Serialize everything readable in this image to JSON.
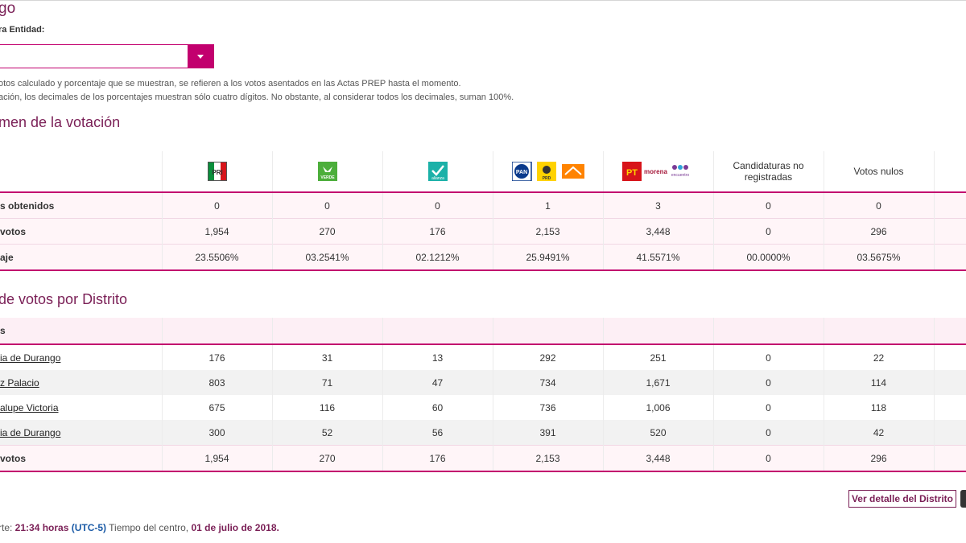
{
  "page_title": "go",
  "select_label": "ra Entidad:",
  "notes": [
    "otos calculado y porcentaje que se muestran, se refieren a los votos asentados en las Actas PREP hasta el momento.",
    "ación, los decimales de los porcentajes muestran sólo cuatro dígitos. No obstante, al considerar todos los decimales, suman 100%."
  ],
  "summary": {
    "title": "men de la votación",
    "columns": [
      {
        "type": "logo",
        "parties": [
          "PRI"
        ]
      },
      {
        "type": "logo",
        "parties": [
          "VERDE"
        ]
      },
      {
        "type": "logo",
        "parties": [
          "alianza"
        ]
      },
      {
        "type": "logo",
        "parties": [
          "PAN",
          "PRD",
          "MC"
        ]
      },
      {
        "type": "logo",
        "parties": [
          "PT",
          "morena",
          "encuentro"
        ]
      },
      {
        "type": "text",
        "label": "Candidaturas no registradas"
      },
      {
        "type": "text",
        "label": "Votos nulos"
      }
    ],
    "rows": [
      {
        "label": "s obtenidos",
        "values": [
          "0",
          "0",
          "0",
          "1",
          "3",
          "0",
          "0"
        ]
      },
      {
        "label": "votos",
        "values": [
          "1,954",
          "270",
          "176",
          "2,153",
          "3,448",
          "0",
          "296"
        ]
      },
      {
        "label": "aje",
        "values": [
          "23.5506%",
          "03.2541%",
          "02.1212%",
          "25.9491%",
          "41.5571%",
          "00.0000%",
          "03.5675%"
        ]
      }
    ]
  },
  "district": {
    "title": "de votos por Distrito",
    "header_label": "s",
    "rows": [
      {
        "label": "ia de Durango",
        "values": [
          "176",
          "31",
          "13",
          "292",
          "251",
          "0",
          "22"
        ]
      },
      {
        "label": "z Palacio",
        "values": [
          "803",
          "71",
          "47",
          "734",
          "1,671",
          "0",
          "114"
        ]
      },
      {
        "label": "alupe Victoria",
        "values": [
          "675",
          "116",
          "60",
          "736",
          "1,006",
          "0",
          "118"
        ]
      },
      {
        "label": "ia de Durango",
        "values": [
          "300",
          "52",
          "56",
          "391",
          "520",
          "0",
          "42"
        ]
      }
    ],
    "total": {
      "label": "votos",
      "values": [
        "1,954",
        "270",
        "176",
        "2,153",
        "3,448",
        "0",
        "296"
      ]
    }
  },
  "detail_button": "Ver detalle del Distrito",
  "footer": {
    "prefix": "rte: ",
    "time": "21:34 horas",
    "utc": "(UTC-5)",
    "middle": " Tiempo del centro, ",
    "date": "01 de julio de 2018."
  },
  "colors": {
    "accent": "#c2006e",
    "title": "#7a1f56"
  }
}
